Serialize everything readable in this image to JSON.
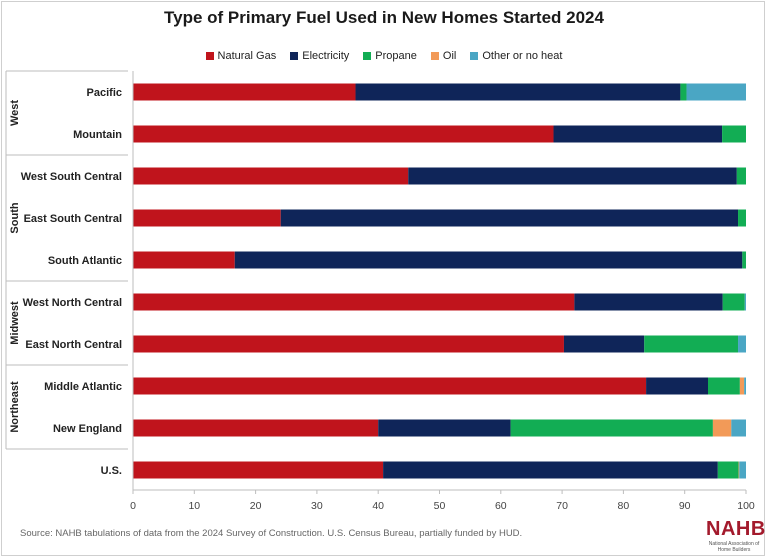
{
  "colors": {
    "natural_gas": "#c0141c",
    "electricity": "#0f2559",
    "propane": "#12ad54",
    "oil": "#f29a58",
    "other": "#4aa6c4"
  },
  "chart_data": {
    "type": "bar",
    "orientation": "horizontal",
    "stacked": true,
    "title": "Type of Primary Fuel Used in New Homes Started 2024",
    "xlim": [
      0,
      100
    ],
    "xticks": [
      0,
      10,
      20,
      30,
      40,
      50,
      60,
      70,
      80,
      90,
      100
    ],
    "legend_position": "top-center",
    "grid": false,
    "categories": [
      "Pacific",
      "Mountain",
      "West South Central",
      "East South Central",
      "South Atlantic",
      "West North Central",
      "East North Central",
      "Middle Atlantic",
      "New England",
      "U.S."
    ],
    "groups": [
      {
        "label": "West",
        "members": [
          "Pacific",
          "Mountain"
        ]
      },
      {
        "label": "South",
        "members": [
          "West South Central",
          "East South Central",
          "South Atlantic"
        ]
      },
      {
        "label": "Midwest",
        "members": [
          "West North Central",
          "East North Central"
        ]
      },
      {
        "label": "Northeast",
        "members": [
          "Middle Atlantic",
          "New England"
        ]
      }
    ],
    "series": [
      {
        "name": "Natural Gas",
        "color_key": "natural_gas",
        "values": [
          36.3,
          68.6,
          44.9,
          24.1,
          16.6,
          72.0,
          70.3,
          83.7,
          40.0,
          40.8
        ]
      },
      {
        "name": "Electricity",
        "color_key": "electricity",
        "values": [
          53.0,
          27.5,
          53.6,
          74.6,
          82.8,
          24.2,
          13.1,
          10.1,
          21.6,
          54.6
        ]
      },
      {
        "name": "Propane",
        "color_key": "propane",
        "values": [
          1.0,
          3.9,
          1.5,
          1.3,
          0.6,
          3.6,
          15.3,
          5.2,
          33.0,
          3.4
        ]
      },
      {
        "name": "Oil",
        "color_key": "oil",
        "values": [
          0.0,
          0.0,
          0.0,
          0.0,
          0.0,
          0.0,
          0.0,
          0.7,
          3.0,
          0.1
        ]
      },
      {
        "name": "Other or no heat",
        "color_key": "other",
        "values": [
          9.7,
          0.0,
          0.0,
          0.0,
          0.0,
          0.2,
          1.3,
          0.3,
          2.4,
          1.1
        ]
      }
    ]
  },
  "source": "Source: NAHB tabulations of data from the 2024 Survey of Construction. U.S. Census Bureau, partially funded by HUD.",
  "logo": {
    "name": "NAHB",
    "subtitle": "National Association of Home Builders"
  }
}
